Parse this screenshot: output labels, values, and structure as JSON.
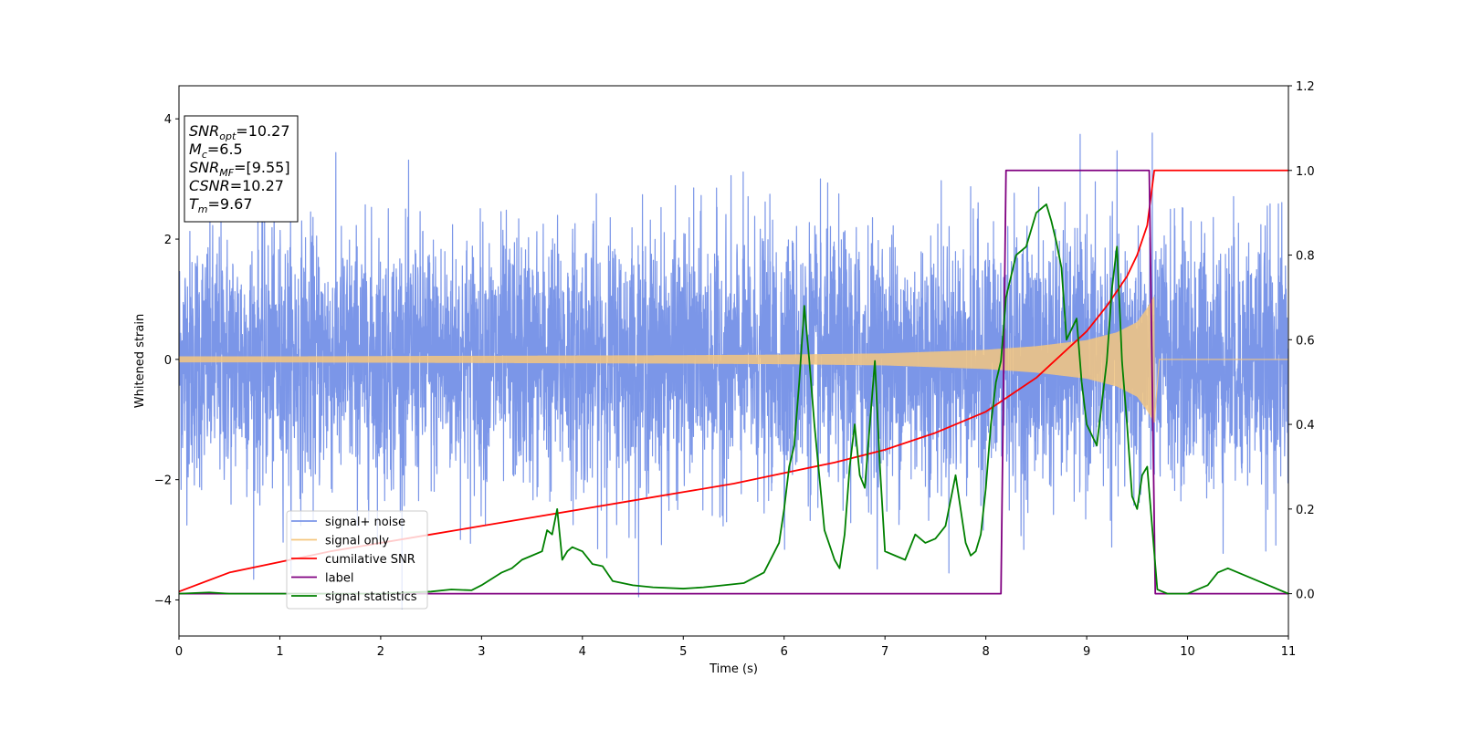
{
  "chart_data": {
    "type": "line",
    "title": "",
    "xlabel": "Time (s)",
    "ylabel": "Whitened strain",
    "xlim": [
      0,
      11
    ],
    "ylim_left": [
      -4.6,
      4.55
    ],
    "ylim_right": [
      -0.1,
      1.2
    ],
    "x_ticks": [
      "0",
      "1",
      "2",
      "3",
      "4",
      "5",
      "6",
      "7",
      "8",
      "9",
      "10",
      "11"
    ],
    "y_left_ticks": [
      "4",
      "2",
      "0",
      "−2",
      "−4"
    ],
    "y_right_ticks": [
      "1.2",
      "1.0",
      "0.8",
      "0.6",
      "0.4",
      "0.2",
      "0.0"
    ],
    "grid": false,
    "legend_position": "lower-left",
    "info_box": {
      "lines": [
        {
          "var": "SNR",
          "sub": "opt",
          "rest": "=10.27"
        },
        {
          "var": "M",
          "sub": "c",
          "rest": "=6.5"
        },
        {
          "var": "SNR",
          "sub": "MF",
          "rest": "=[9.55]"
        },
        {
          "var": "CSNR",
          "sub": "",
          "rest": "=10.27"
        },
        {
          "var": "T",
          "sub": "m",
          "rest": "=9.67"
        }
      ]
    },
    "series": [
      {
        "name": "signal+ noise",
        "color": "#7b96e8",
        "axis": "left",
        "kind": "noise",
        "x_range": [
          0,
          11
        ],
        "amplitude_std": 1.05,
        "visible_range": [
          -4.15,
          4.15
        ]
      },
      {
        "name": "signal only",
        "color": "#f5c77f",
        "axis": "left",
        "kind": "chirp",
        "x_range": [
          0,
          9.67
        ],
        "envelope": {
          "x": [
            0,
            1,
            2,
            3,
            4,
            5,
            6,
            7,
            8,
            8.5,
            9,
            9.3,
            9.5,
            9.6,
            9.67
          ],
          "amp": [
            0.05,
            0.05,
            0.055,
            0.06,
            0.065,
            0.07,
            0.08,
            0.1,
            0.16,
            0.22,
            0.32,
            0.45,
            0.62,
            0.85,
            1.05
          ]
        }
      },
      {
        "name": "cumilative SNR",
        "color": "#ff0000",
        "axis": "right",
        "x": [
          0,
          0.5,
          1,
          1.5,
          2,
          2.5,
          3,
          3.5,
          4,
          4.5,
          5,
          5.5,
          6,
          6.5,
          7,
          7.5,
          8,
          8.5,
          9,
          9.2,
          9.4,
          9.5,
          9.6,
          9.67,
          11
        ],
        "y": [
          0.005,
          0.05,
          0.075,
          0.1,
          0.12,
          0.14,
          0.16,
          0.18,
          0.2,
          0.22,
          0.24,
          0.26,
          0.285,
          0.31,
          0.34,
          0.38,
          0.43,
          0.51,
          0.62,
          0.68,
          0.75,
          0.8,
          0.87,
          1.0,
          1.0
        ]
      },
      {
        "name": "label",
        "color": "#800080",
        "axis": "right",
        "x": [
          0,
          8.15,
          8.2,
          9.62,
          9.68,
          11
        ],
        "y": [
          0.0,
          0.0,
          1.0,
          1.0,
          0.0,
          0.0
        ]
      },
      {
        "name": "signal statistics",
        "color": "#008000",
        "axis": "right",
        "x": [
          0,
          0.3,
          0.5,
          1,
          1.5,
          2,
          2.5,
          2.7,
          2.9,
          3.0,
          3.1,
          3.2,
          3.3,
          3.4,
          3.5,
          3.6,
          3.65,
          3.7,
          3.75,
          3.8,
          3.85,
          3.9,
          4.0,
          4.1,
          4.2,
          4.3,
          4.5,
          4.7,
          5.0,
          5.2,
          5.4,
          5.6,
          5.8,
          5.95,
          6.0,
          6.05,
          6.1,
          6.15,
          6.2,
          6.25,
          6.3,
          6.4,
          6.5,
          6.55,
          6.6,
          6.65,
          6.7,
          6.75,
          6.8,
          6.85,
          6.9,
          6.95,
          7.0,
          7.1,
          7.2,
          7.3,
          7.4,
          7.5,
          7.6,
          7.7,
          7.8,
          7.85,
          7.9,
          7.95,
          8.0,
          8.05,
          8.1,
          8.15,
          8.2,
          8.25,
          8.3,
          8.4,
          8.5,
          8.6,
          8.65,
          8.7,
          8.75,
          8.8,
          8.9,
          8.95,
          9.0,
          9.1,
          9.2,
          9.25,
          9.3,
          9.35,
          9.4,
          9.45,
          9.5,
          9.55,
          9.6,
          9.7,
          9.8,
          10.0,
          10.1,
          10.2,
          10.3,
          10.4,
          10.5,
          10.6,
          10.7,
          10.8,
          11
        ],
        "y": [
          0.0,
          0.003,
          0.0,
          0.0,
          0.0,
          0.0,
          0.005,
          0.01,
          0.008,
          0.02,
          0.035,
          0.05,
          0.06,
          0.08,
          0.09,
          0.1,
          0.15,
          0.14,
          0.2,
          0.08,
          0.1,
          0.11,
          0.1,
          0.07,
          0.065,
          0.03,
          0.02,
          0.015,
          0.012,
          0.015,
          0.02,
          0.025,
          0.05,
          0.12,
          0.2,
          0.3,
          0.35,
          0.5,
          0.68,
          0.55,
          0.4,
          0.15,
          0.08,
          0.06,
          0.14,
          0.3,
          0.4,
          0.28,
          0.25,
          0.4,
          0.55,
          0.3,
          0.1,
          0.09,
          0.08,
          0.14,
          0.12,
          0.13,
          0.16,
          0.28,
          0.12,
          0.09,
          0.1,
          0.14,
          0.25,
          0.4,
          0.5,
          0.55,
          0.7,
          0.75,
          0.8,
          0.82,
          0.9,
          0.92,
          0.88,
          0.83,
          0.77,
          0.6,
          0.65,
          0.5,
          0.4,
          0.35,
          0.55,
          0.72,
          0.82,
          0.55,
          0.4,
          0.23,
          0.2,
          0.28,
          0.3,
          0.01,
          0.0,
          0.0,
          0.01,
          0.02,
          0.05,
          0.06,
          0.05,
          0.04,
          0.03,
          0.02,
          0.0
        ]
      }
    ]
  }
}
